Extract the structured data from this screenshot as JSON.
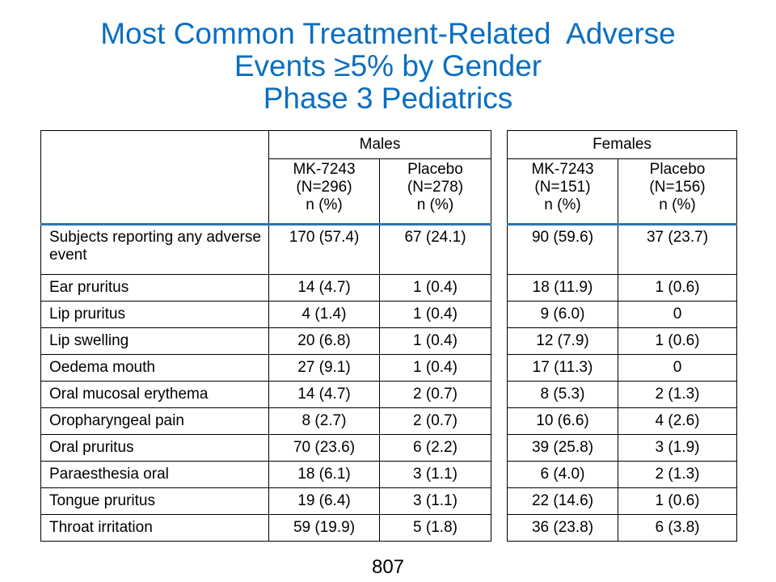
{
  "title": {
    "line1": "Most Common Treatment-Related  Adverse",
    "line2": "Events ≥5% by Gender",
    "line3": "Phase 3 Pediatrics"
  },
  "groups": {
    "males": "Males",
    "females": "Females"
  },
  "columns": {
    "males_mk": [
      "MK-7243",
      "(N=296)",
      "n (%)"
    ],
    "males_placebo": [
      "Placebo",
      "(N=278)",
      "n (%)"
    ],
    "females_mk": [
      "MK-7243",
      "(N=151)",
      "n (%)"
    ],
    "females_placebo": [
      "Placebo",
      "(N=156)",
      "n (%)"
    ]
  },
  "rows": [
    {
      "label": "Subjects reporting any adverse event",
      "m_mk": "170 (57.4)",
      "m_pl": "67 (24.1)",
      "f_mk": "90 (59.6)",
      "f_pl": "37 (23.7)"
    },
    {
      "label": "Ear pruritus",
      "m_mk": "14 (4.7)",
      "m_pl": "1 (0.4)",
      "f_mk": "18 (11.9)",
      "f_pl": "1 (0.6)"
    },
    {
      "label": "Lip pruritus",
      "m_mk": "4 (1.4)",
      "m_pl": "1 (0.4)",
      "f_mk": "9 (6.0)",
      "f_pl": "0"
    },
    {
      "label": "Lip swelling",
      "m_mk": "20 (6.8)",
      "m_pl": "1 (0.4)",
      "f_mk": "12 (7.9)",
      "f_pl": "1 (0.6)"
    },
    {
      "label": "Oedema mouth",
      "m_mk": "27 (9.1)",
      "m_pl": "1 (0.4)",
      "f_mk": "17 (11.3)",
      "f_pl": "0"
    },
    {
      "label": "Oral mucosal erythema",
      "m_mk": "14 (4.7)",
      "m_pl": "2 (0.7)",
      "f_mk": "8 (5.3)",
      "f_pl": "2 (1.3)"
    },
    {
      "label": "Oropharyngeal pain",
      "m_mk": "8 (2.7)",
      "m_pl": "2 (0.7)",
      "f_mk": "10 (6.6)",
      "f_pl": "4 (2.6)"
    },
    {
      "label": "Oral pruritus",
      "m_mk": "70 (23.6)",
      "m_pl": "6 (2.2)",
      "f_mk": "39 (25.8)",
      "f_pl": "3 (1.9)"
    },
    {
      "label": "Paraesthesia oral",
      "m_mk": "18 (6.1)",
      "m_pl": "3 (1.1)",
      "f_mk": "6 (4.0)",
      "f_pl": "2 (1.3)"
    },
    {
      "label": "Tongue pruritus",
      "m_mk": "19 (6.4)",
      "m_pl": "3 (1.1)",
      "f_mk": "22 (14.6)",
      "f_pl": "1 (0.6)"
    },
    {
      "label": "Throat irritation",
      "m_mk": "59 (19.9)",
      "m_pl": "5 (1.8)",
      "f_mk": "36 (23.8)",
      "f_pl": "6 (3.8)"
    }
  ],
  "page_number": "807"
}
